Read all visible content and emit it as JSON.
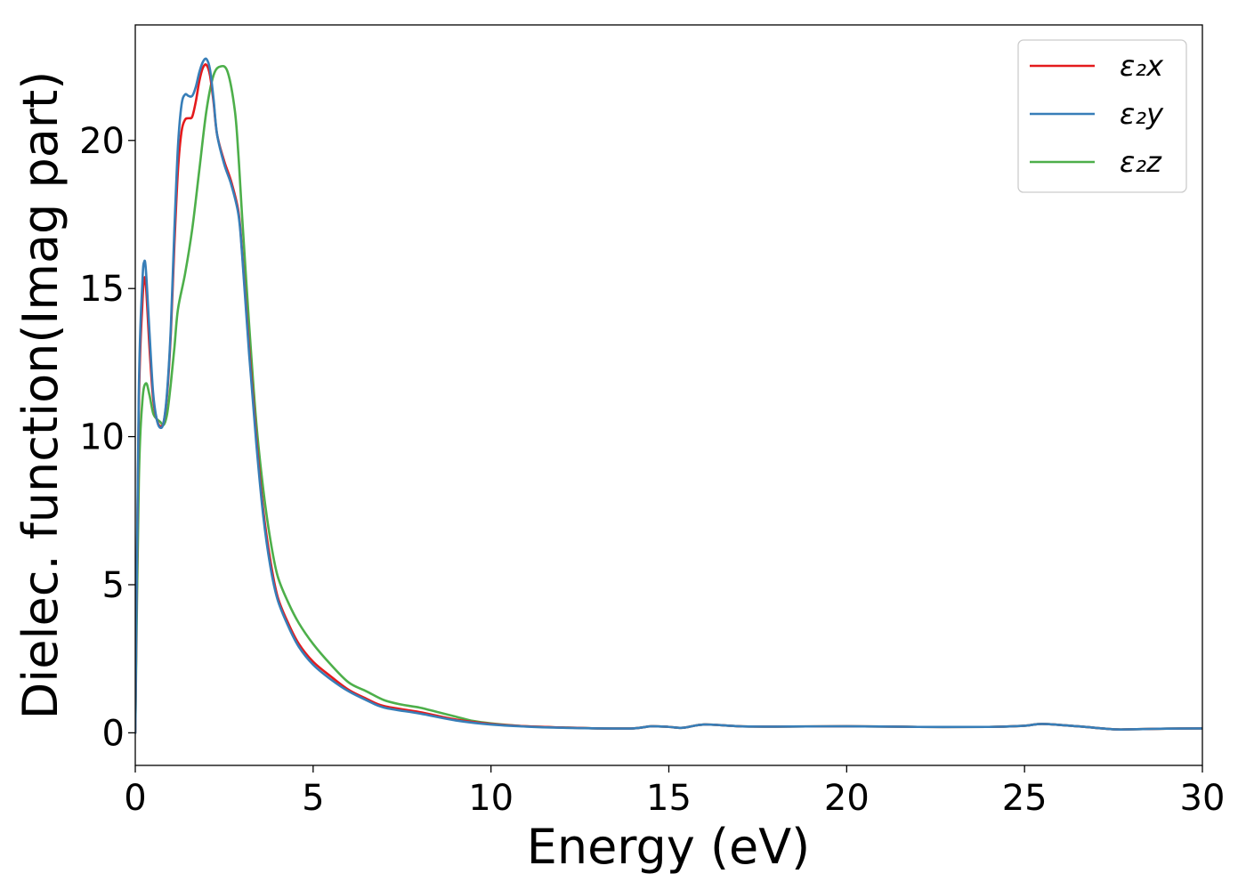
{
  "chart_data": {
    "type": "line",
    "title": "",
    "xlabel": "Energy (eV)",
    "ylabel": "Dielec. function(Imag part)",
    "xlim": [
      0,
      30
    ],
    "ylim": [
      -1.1,
      23.9
    ],
    "xticks": [
      0,
      5,
      10,
      15,
      20,
      25,
      30
    ],
    "yticks": [
      0,
      5,
      10,
      15,
      20
    ],
    "grid": false,
    "legend_position": "top-right",
    "series": [
      {
        "name": "ε₂x",
        "color": "#e41a1c",
        "points": [
          [
            0,
            0
          ],
          [
            0.1,
            11.0
          ],
          [
            0.2,
            14.5
          ],
          [
            0.25,
            15.3
          ],
          [
            0.3,
            15.1
          ],
          [
            0.4,
            13.0
          ],
          [
            0.5,
            11.3
          ],
          [
            0.6,
            10.6
          ],
          [
            0.7,
            10.35
          ],
          [
            0.8,
            10.5
          ],
          [
            0.9,
            11.5
          ],
          [
            1.0,
            13.5
          ],
          [
            1.1,
            16.5
          ],
          [
            1.2,
            19.0
          ],
          [
            1.3,
            20.3
          ],
          [
            1.4,
            20.7
          ],
          [
            1.5,
            20.75
          ],
          [
            1.6,
            20.8
          ],
          [
            1.7,
            21.3
          ],
          [
            1.8,
            22.0
          ],
          [
            1.9,
            22.45
          ],
          [
            2.0,
            22.55
          ],
          [
            2.1,
            22.2
          ],
          [
            2.2,
            21.3
          ],
          [
            2.3,
            20.2
          ],
          [
            2.5,
            19.3
          ],
          [
            2.7,
            18.6
          ],
          [
            2.9,
            17.6
          ],
          [
            3.0,
            16.3
          ],
          [
            3.2,
            13.0
          ],
          [
            3.4,
            10.0
          ],
          [
            3.6,
            7.5
          ],
          [
            3.8,
            5.8
          ],
          [
            4.0,
            4.6
          ],
          [
            4.3,
            3.7
          ],
          [
            4.6,
            3.0
          ],
          [
            5.0,
            2.4
          ],
          [
            5.5,
            1.9
          ],
          [
            6.0,
            1.45
          ],
          [
            6.5,
            1.15
          ],
          [
            7.0,
            0.9
          ],
          [
            8.0,
            0.7
          ],
          [
            9.0,
            0.45
          ],
          [
            10.0,
            0.3
          ],
          [
            11.0,
            0.22
          ],
          [
            12.0,
            0.18
          ],
          [
            13.0,
            0.15
          ],
          [
            14.0,
            0.15
          ],
          [
            14.5,
            0.22
          ],
          [
            15.0,
            0.2
          ],
          [
            15.4,
            0.17
          ],
          [
            16.0,
            0.28
          ],
          [
            17.0,
            0.22
          ],
          [
            18.0,
            0.21
          ],
          [
            20.0,
            0.22
          ],
          [
            22.0,
            0.2
          ],
          [
            24.0,
            0.2
          ],
          [
            25.0,
            0.24
          ],
          [
            25.5,
            0.3
          ],
          [
            26.5,
            0.22
          ],
          [
            27.5,
            0.12
          ],
          [
            28.0,
            0.12
          ],
          [
            29.0,
            0.14
          ],
          [
            30.0,
            0.15
          ]
        ]
      },
      {
        "name": "ε₂y",
        "color": "#377eb8",
        "points": [
          [
            0,
            0
          ],
          [
            0.1,
            11.5
          ],
          [
            0.2,
            15.2
          ],
          [
            0.25,
            15.9
          ],
          [
            0.3,
            15.6
          ],
          [
            0.4,
            13.5
          ],
          [
            0.5,
            11.5
          ],
          [
            0.6,
            10.6
          ],
          [
            0.7,
            10.3
          ],
          [
            0.8,
            10.5
          ],
          [
            0.9,
            11.6
          ],
          [
            1.0,
            13.7
          ],
          [
            1.1,
            17.0
          ],
          [
            1.2,
            19.8
          ],
          [
            1.3,
            21.2
          ],
          [
            1.4,
            21.55
          ],
          [
            1.5,
            21.5
          ],
          [
            1.6,
            21.5
          ],
          [
            1.7,
            21.8
          ],
          [
            1.8,
            22.3
          ],
          [
            1.9,
            22.65
          ],
          [
            2.0,
            22.75
          ],
          [
            2.1,
            22.4
          ],
          [
            2.2,
            21.4
          ],
          [
            2.3,
            20.2
          ],
          [
            2.5,
            19.2
          ],
          [
            2.7,
            18.5
          ],
          [
            2.9,
            17.5
          ],
          [
            3.0,
            16.2
          ],
          [
            3.2,
            12.8
          ],
          [
            3.4,
            9.8
          ],
          [
            3.6,
            7.3
          ],
          [
            3.8,
            5.6
          ],
          [
            4.0,
            4.5
          ],
          [
            4.3,
            3.6
          ],
          [
            4.6,
            2.9
          ],
          [
            5.0,
            2.3
          ],
          [
            5.5,
            1.8
          ],
          [
            6.0,
            1.4
          ],
          [
            6.5,
            1.1
          ],
          [
            7.0,
            0.85
          ],
          [
            8.0,
            0.65
          ],
          [
            9.0,
            0.42
          ],
          [
            10.0,
            0.28
          ],
          [
            11.0,
            0.21
          ],
          [
            12.0,
            0.17
          ],
          [
            13.0,
            0.15
          ],
          [
            14.0,
            0.15
          ],
          [
            14.5,
            0.22
          ],
          [
            15.0,
            0.2
          ],
          [
            15.4,
            0.17
          ],
          [
            16.0,
            0.28
          ],
          [
            17.0,
            0.22
          ],
          [
            18.0,
            0.21
          ],
          [
            20.0,
            0.22
          ],
          [
            22.0,
            0.2
          ],
          [
            24.0,
            0.2
          ],
          [
            25.0,
            0.24
          ],
          [
            25.5,
            0.3
          ],
          [
            26.5,
            0.22
          ],
          [
            27.5,
            0.12
          ],
          [
            28.0,
            0.12
          ],
          [
            29.0,
            0.14
          ],
          [
            30.0,
            0.15
          ]
        ]
      },
      {
        "name": "ε₂z",
        "color": "#4daf4a",
        "points": [
          [
            0,
            0
          ],
          [
            0.1,
            8.5
          ],
          [
            0.2,
            11.2
          ],
          [
            0.3,
            11.8
          ],
          [
            0.4,
            11.4
          ],
          [
            0.5,
            10.8
          ],
          [
            0.6,
            10.6
          ],
          [
            0.7,
            10.5
          ],
          [
            0.8,
            10.4
          ],
          [
            0.9,
            10.8
          ],
          [
            1.0,
            11.8
          ],
          [
            1.1,
            13.0
          ],
          [
            1.2,
            14.3
          ],
          [
            1.4,
            15.5
          ],
          [
            1.6,
            17.0
          ],
          [
            1.8,
            19.0
          ],
          [
            2.0,
            21.0
          ],
          [
            2.2,
            22.2
          ],
          [
            2.4,
            22.5
          ],
          [
            2.6,
            22.3
          ],
          [
            2.8,
            21.0
          ],
          [
            2.9,
            19.5
          ],
          [
            3.0,
            17.5
          ],
          [
            3.2,
            13.8
          ],
          [
            3.4,
            10.5
          ],
          [
            3.6,
            8.2
          ],
          [
            3.8,
            6.5
          ],
          [
            4.0,
            5.3
          ],
          [
            4.3,
            4.4
          ],
          [
            4.6,
            3.7
          ],
          [
            5.0,
            3.0
          ],
          [
            5.5,
            2.3
          ],
          [
            6.0,
            1.7
          ],
          [
            6.5,
            1.4
          ],
          [
            7.0,
            1.1
          ],
          [
            7.5,
            0.95
          ],
          [
            8.0,
            0.85
          ],
          [
            8.5,
            0.7
          ],
          [
            9.0,
            0.55
          ],
          [
            9.5,
            0.4
          ],
          [
            10.0,
            0.32
          ],
          [
            11.0,
            0.22
          ],
          [
            12.0,
            0.18
          ],
          [
            13.0,
            0.15
          ],
          [
            14.0,
            0.15
          ],
          [
            14.5,
            0.22
          ],
          [
            15.0,
            0.2
          ],
          [
            15.4,
            0.17
          ],
          [
            16.0,
            0.28
          ],
          [
            17.0,
            0.22
          ],
          [
            18.0,
            0.21
          ],
          [
            20.0,
            0.22
          ],
          [
            22.0,
            0.2
          ],
          [
            24.0,
            0.2
          ],
          [
            25.0,
            0.24
          ],
          [
            25.5,
            0.3
          ],
          [
            26.5,
            0.22
          ],
          [
            27.5,
            0.12
          ],
          [
            28.0,
            0.12
          ],
          [
            29.0,
            0.14
          ],
          [
            30.0,
            0.15
          ]
        ]
      }
    ]
  }
}
